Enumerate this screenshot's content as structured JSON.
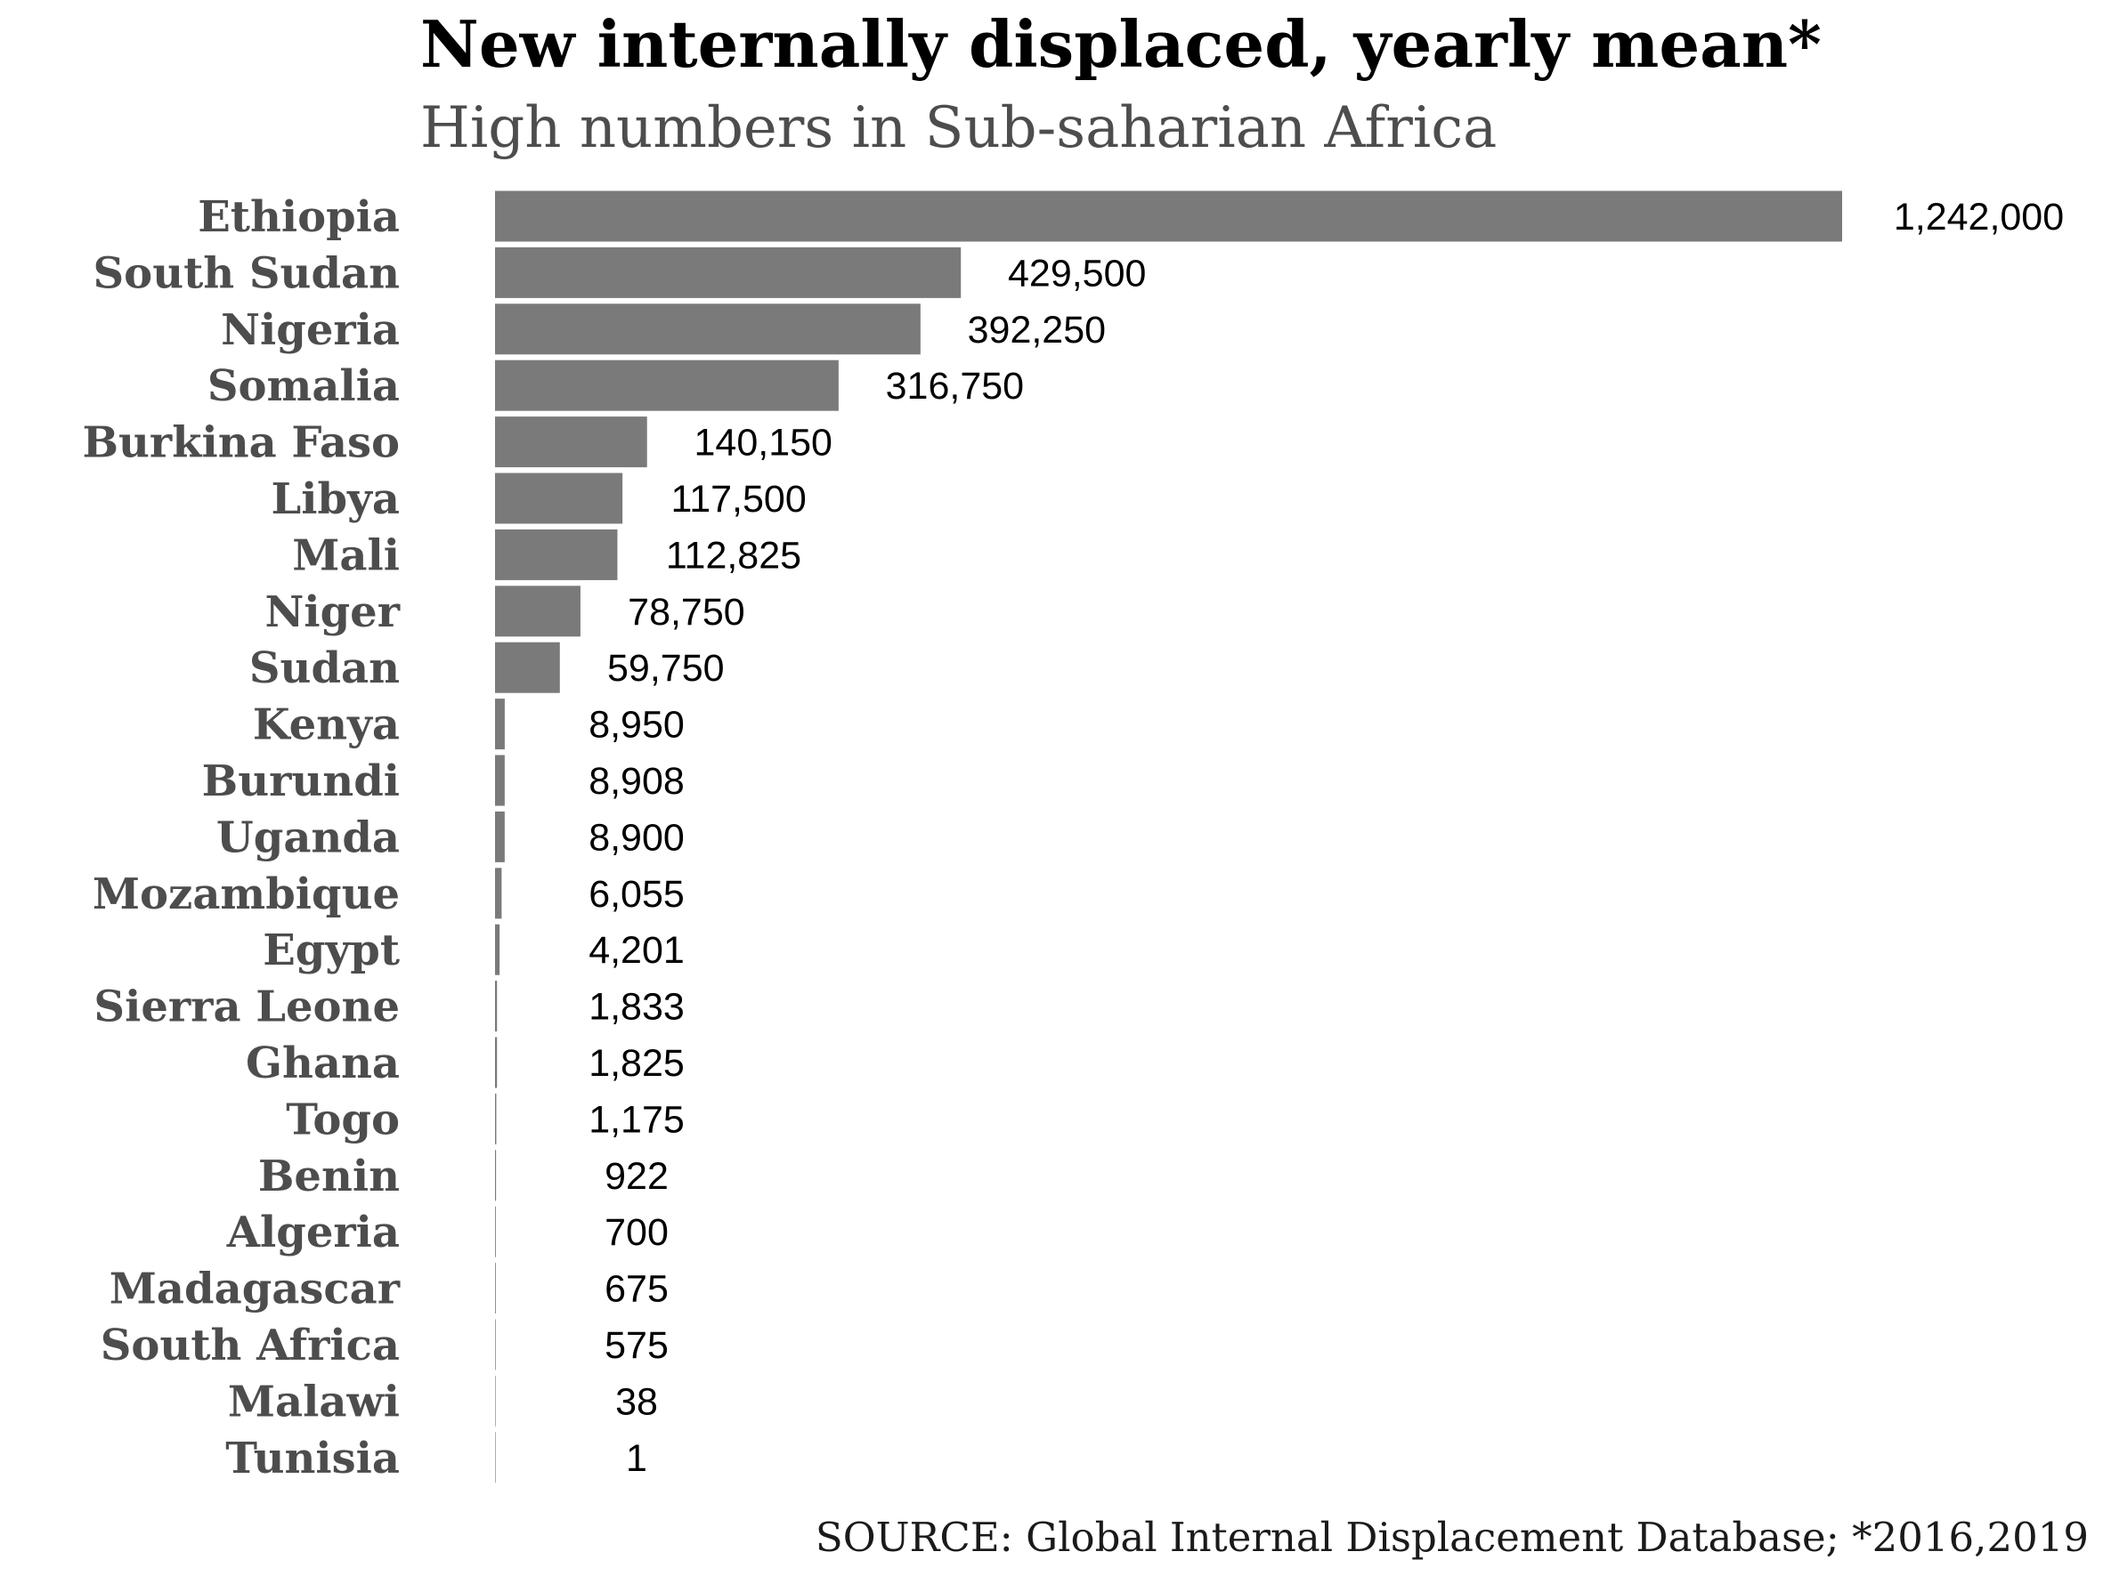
{
  "chart_data": {
    "type": "bar",
    "orientation": "horizontal",
    "title": "New internally displaced, yearly mean*",
    "subtitle": "High numbers in Sub-saharian Africa",
    "caption": "SOURCE: Global Internal Displacement Database; *2016,2019",
    "categories": [
      "Ethiopia",
      "South Sudan",
      "Nigeria",
      "Somalia",
      "Burkina Faso",
      "Libya",
      "Mali",
      "Niger",
      "Sudan",
      "Kenya",
      "Burundi",
      "Uganda",
      "Mozambique",
      "Egypt",
      "Sierra Leone",
      "Ghana",
      "Togo",
      "Benin",
      "Algeria",
      "Madagascar",
      "South Africa",
      "Malawi",
      "Tunisia"
    ],
    "values": [
      1242000,
      429500,
      392250,
      316750,
      140150,
      117500,
      112825,
      78750,
      59750,
      8950,
      8908,
      8900,
      6055,
      4201,
      1833,
      1825,
      1175,
      922,
      700,
      675,
      575,
      38,
      1
    ],
    "value_labels": [
      "1,242,000",
      "429,500",
      "392,250",
      "316,750",
      "140,150",
      "117,500",
      "112,825",
      "78,750",
      "59,750",
      "8,950",
      "8,908",
      "8,900",
      "6,055",
      "4,201",
      "1,833",
      "1,825",
      "1,175",
      "922",
      "700",
      "675",
      "575",
      "38",
      "1"
    ],
    "xlim": [
      0,
      1242000
    ],
    "bar_color": "#7a7a7a",
    "grid": false,
    "legend": "none",
    "x_axis_visible": false
  }
}
